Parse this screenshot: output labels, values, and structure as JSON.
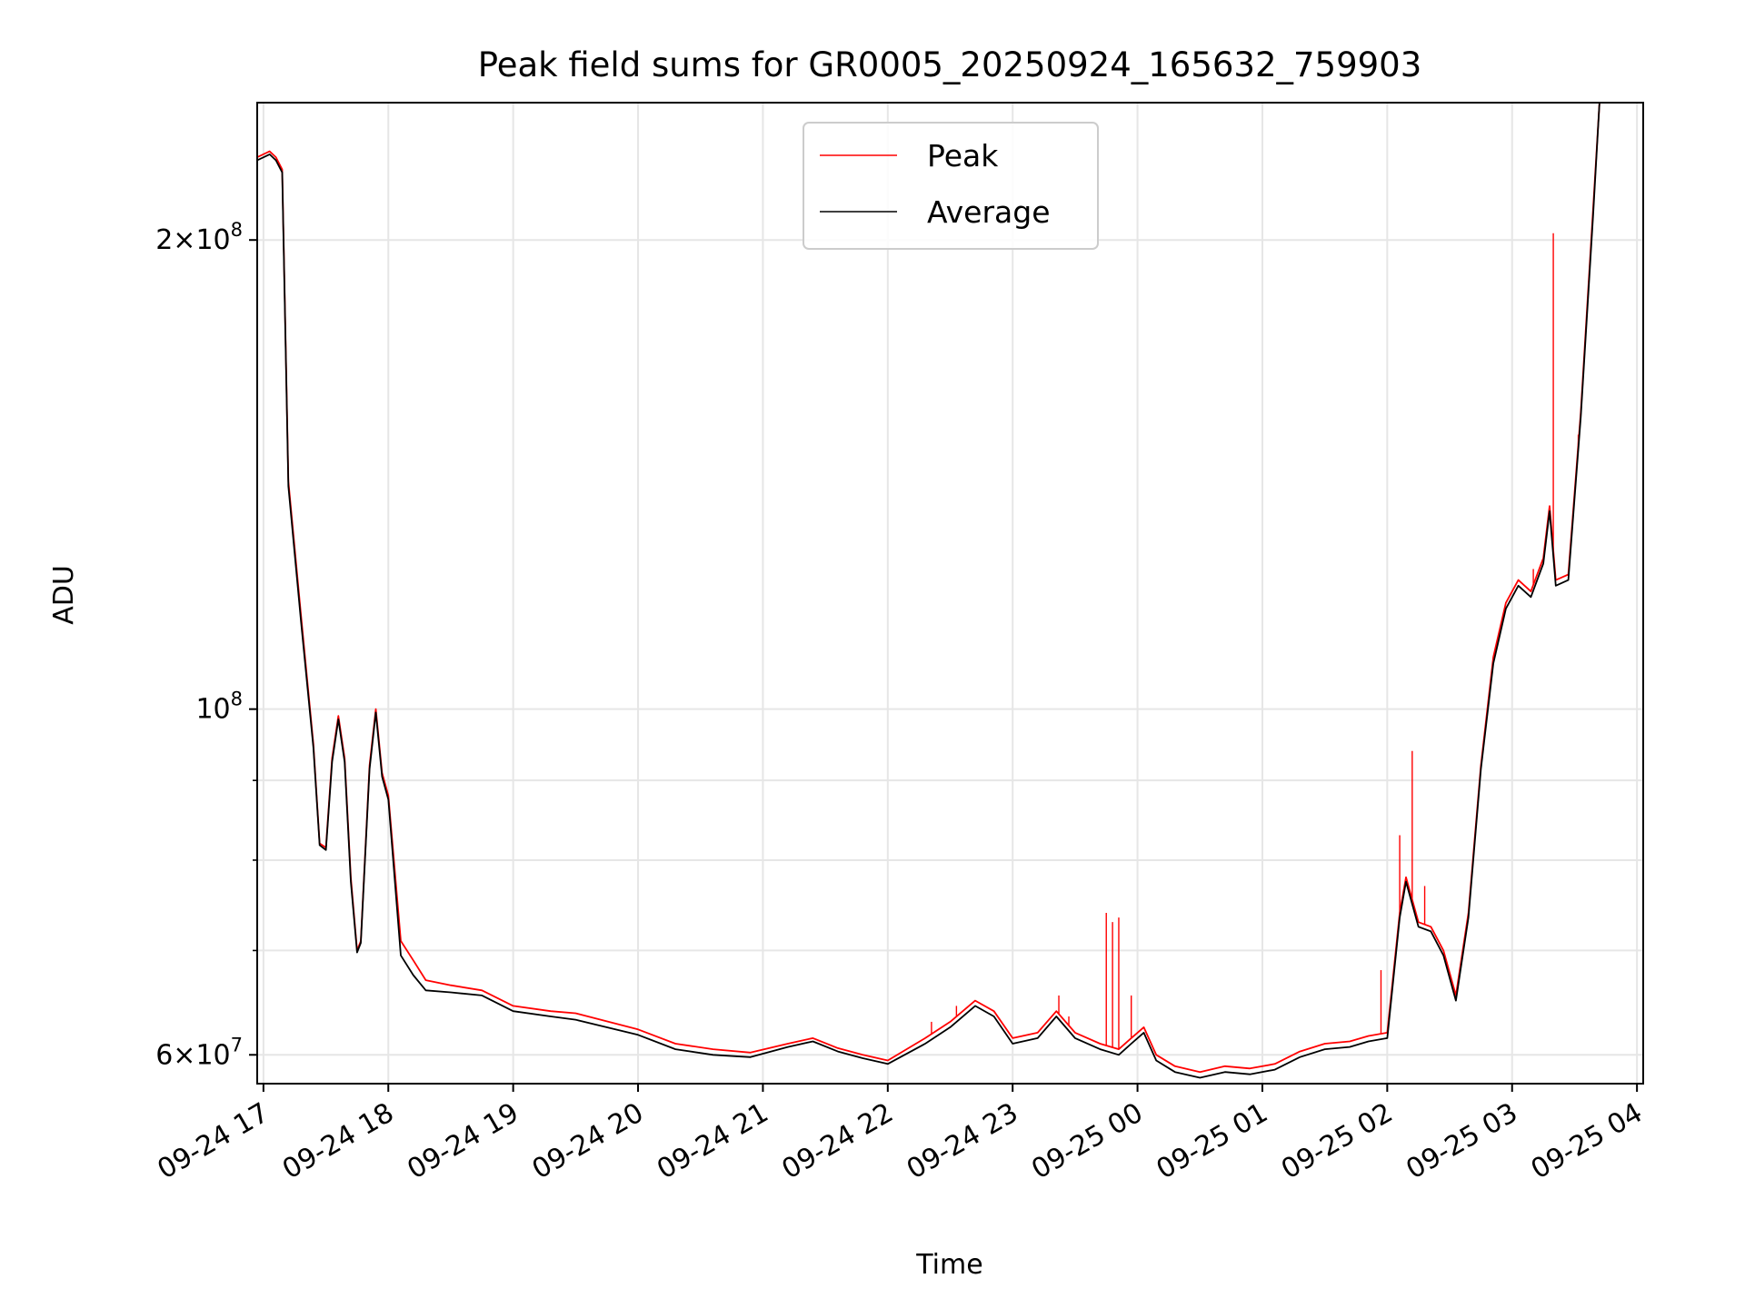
{
  "chart_data": {
    "type": "line",
    "title": "Peak field sums for GR0005_20250924_165632_759903",
    "xlabel": "Time",
    "ylabel": "ADU",
    "yscale": "log",
    "xlim_hours": [
      16.95,
      28.05
    ],
    "ylim": [
      57500000,
      245000000
    ],
    "grid": true,
    "legend_position": "top-center",
    "x_ticks": [
      {
        "hours": 17,
        "label": "09-24 17"
      },
      {
        "hours": 18,
        "label": "09-24 18"
      },
      {
        "hours": 19,
        "label": "09-24 19"
      },
      {
        "hours": 20,
        "label": "09-24 20"
      },
      {
        "hours": 21,
        "label": "09-24 21"
      },
      {
        "hours": 22,
        "label": "09-24 22"
      },
      {
        "hours": 23,
        "label": "09-24 23"
      },
      {
        "hours": 24,
        "label": "09-25 00"
      },
      {
        "hours": 25,
        "label": "09-25 01"
      },
      {
        "hours": 26,
        "label": "09-25 02"
      },
      {
        "hours": 27,
        "label": "09-25 03"
      },
      {
        "hours": 28,
        "label": "09-25 04"
      }
    ],
    "y_major_ticks": [
      {
        "value": 60000000,
        "mant": "6",
        "exp": "7"
      },
      {
        "value": 100000000,
        "mant": "",
        "exp": "8"
      },
      {
        "value": 200000000,
        "mant": "2",
        "exp": "8"
      }
    ],
    "y_minor_values": [
      70000000,
      80000000,
      90000000
    ],
    "tick_times_sign": "×",
    "tick_base": "10",
    "series": [
      {
        "name": "Peak",
        "color": "#ff0000",
        "points": [
          [
            16.95,
            226000000
          ],
          [
            17.05,
            228000000
          ],
          [
            17.1,
            226000000
          ],
          [
            17.15,
            222000000
          ],
          [
            17.2,
            140000000
          ],
          [
            17.3,
            115000000
          ],
          [
            17.4,
            95000000
          ],
          [
            17.45,
            82000000
          ],
          [
            17.5,
            81500000
          ],
          [
            17.55,
            93000000
          ],
          [
            17.6,
            99000000
          ],
          [
            17.65,
            93000000
          ],
          [
            17.7,
            78000000
          ],
          [
            17.75,
            70000000
          ],
          [
            17.78,
            71000000
          ],
          [
            17.85,
            92000000
          ],
          [
            17.9,
            100000000
          ],
          [
            17.95,
            91000000
          ],
          [
            18.0,
            88000000
          ],
          [
            18.1,
            71000000
          ],
          [
            18.2,
            69000000
          ],
          [
            18.3,
            67000000
          ],
          [
            18.5,
            66500000
          ],
          [
            18.75,
            66000000
          ],
          [
            19.0,
            64500000
          ],
          [
            19.3,
            64000000
          ],
          [
            19.5,
            63800000
          ],
          [
            20.0,
            62300000
          ],
          [
            20.3,
            61000000
          ],
          [
            20.6,
            60500000
          ],
          [
            20.9,
            60200000
          ],
          [
            21.2,
            61000000
          ],
          [
            21.4,
            61500000
          ],
          [
            21.6,
            60600000
          ],
          [
            21.8,
            60000000
          ],
          [
            22.0,
            59500000
          ],
          [
            22.3,
            61500000
          ],
          [
            22.5,
            63000000
          ],
          [
            22.7,
            65000000
          ],
          [
            22.85,
            64000000
          ],
          [
            23.0,
            61500000
          ],
          [
            23.2,
            62000000
          ],
          [
            23.35,
            64000000
          ],
          [
            23.5,
            62000000
          ],
          [
            23.7,
            61000000
          ],
          [
            23.85,
            60500000
          ],
          [
            23.95,
            61500000
          ],
          [
            24.05,
            62500000
          ],
          [
            24.15,
            60000000
          ],
          [
            24.3,
            59000000
          ],
          [
            24.5,
            58500000
          ],
          [
            24.7,
            59000000
          ],
          [
            24.9,
            58800000
          ],
          [
            25.1,
            59200000
          ],
          [
            25.3,
            60300000
          ],
          [
            25.5,
            61000000
          ],
          [
            25.7,
            61200000
          ],
          [
            25.85,
            61700000
          ],
          [
            26.0,
            62000000
          ],
          [
            26.1,
            74000000
          ],
          [
            26.15,
            78000000
          ],
          [
            26.25,
            73000000
          ],
          [
            26.35,
            72500000
          ],
          [
            26.45,
            70000000
          ],
          [
            26.55,
            65500000
          ],
          [
            26.65,
            74000000
          ],
          [
            26.75,
            92000000
          ],
          [
            26.85,
            108000000
          ],
          [
            26.95,
            117000000
          ],
          [
            27.05,
            121000000
          ],
          [
            27.15,
            119000000
          ],
          [
            27.25,
            125000000
          ],
          [
            27.3,
            135000000
          ],
          [
            27.35,
            121000000
          ],
          [
            27.45,
            122000000
          ],
          [
            27.55,
            155000000
          ],
          [
            27.65,
            210000000
          ],
          [
            27.7,
            245000000
          ]
        ],
        "spikes": [
          [
            22.35,
            63000000
          ],
          [
            22.55,
            64500000
          ],
          [
            23.37,
            65500000
          ],
          [
            23.45,
            63500000
          ],
          [
            23.75,
            74000000
          ],
          [
            23.8,
            73000000
          ],
          [
            23.85,
            73500000
          ],
          [
            23.95,
            65500000
          ],
          [
            25.95,
            68000000
          ],
          [
            26.1,
            83000000
          ],
          [
            26.2,
            94000000
          ],
          [
            26.3,
            77000000
          ],
          [
            27.17,
            123000000
          ],
          [
            27.33,
            202000000
          ],
          [
            27.53,
            150000000
          ]
        ]
      },
      {
        "name": "Average",
        "color": "#000000",
        "points": [
          [
            16.95,
            225000000
          ],
          [
            17.05,
            227000000
          ],
          [
            17.1,
            225000000
          ],
          [
            17.15,
            221000000
          ],
          [
            17.2,
            139000000
          ],
          [
            17.3,
            114000000
          ],
          [
            17.4,
            94500000
          ],
          [
            17.45,
            81800000
          ],
          [
            17.5,
            81200000
          ],
          [
            17.55,
            92500000
          ],
          [
            17.6,
            98500000
          ],
          [
            17.65,
            92500000
          ],
          [
            17.7,
            77500000
          ],
          [
            17.75,
            69800000
          ],
          [
            17.78,
            70800000
          ],
          [
            17.85,
            91500000
          ],
          [
            17.9,
            99500000
          ],
          [
            17.95,
            90500000
          ],
          [
            18.0,
            87500000
          ],
          [
            18.1,
            69500000
          ],
          [
            18.2,
            67500000
          ],
          [
            18.3,
            66000000
          ],
          [
            18.5,
            65800000
          ],
          [
            18.75,
            65500000
          ],
          [
            19.0,
            64000000
          ],
          [
            19.3,
            63500000
          ],
          [
            19.5,
            63200000
          ],
          [
            20.0,
            61800000
          ],
          [
            20.3,
            60500000
          ],
          [
            20.6,
            60000000
          ],
          [
            20.9,
            59800000
          ],
          [
            21.2,
            60700000
          ],
          [
            21.4,
            61200000
          ],
          [
            21.6,
            60300000
          ],
          [
            21.8,
            59700000
          ],
          [
            22.0,
            59200000
          ],
          [
            22.3,
            61000000
          ],
          [
            22.5,
            62500000
          ],
          [
            22.7,
            64500000
          ],
          [
            22.85,
            63500000
          ],
          [
            23.0,
            61000000
          ],
          [
            23.2,
            61500000
          ],
          [
            23.35,
            63500000
          ],
          [
            23.5,
            61500000
          ],
          [
            23.7,
            60500000
          ],
          [
            23.85,
            60000000
          ],
          [
            23.95,
            61000000
          ],
          [
            24.05,
            62000000
          ],
          [
            24.15,
            59500000
          ],
          [
            24.3,
            58500000
          ],
          [
            24.5,
            58000000
          ],
          [
            24.7,
            58500000
          ],
          [
            24.9,
            58300000
          ],
          [
            25.1,
            58700000
          ],
          [
            25.3,
            59800000
          ],
          [
            25.5,
            60500000
          ],
          [
            25.7,
            60700000
          ],
          [
            25.85,
            61200000
          ],
          [
            26.0,
            61500000
          ],
          [
            26.1,
            73500000
          ],
          [
            26.15,
            77500000
          ],
          [
            26.25,
            72500000
          ],
          [
            26.35,
            72000000
          ],
          [
            26.45,
            69500000
          ],
          [
            26.55,
            65000000
          ],
          [
            26.65,
            73500000
          ],
          [
            26.75,
            91500000
          ],
          [
            26.85,
            107000000
          ],
          [
            26.95,
            116000000
          ],
          [
            27.05,
            120000000
          ],
          [
            27.15,
            118000000
          ],
          [
            27.25,
            124000000
          ],
          [
            27.3,
            134000000
          ],
          [
            27.35,
            120000000
          ],
          [
            27.45,
            121000000
          ],
          [
            27.55,
            154000000
          ],
          [
            27.65,
            208000000
          ],
          [
            27.7,
            245000000
          ]
        ],
        "spikes": []
      }
    ]
  }
}
